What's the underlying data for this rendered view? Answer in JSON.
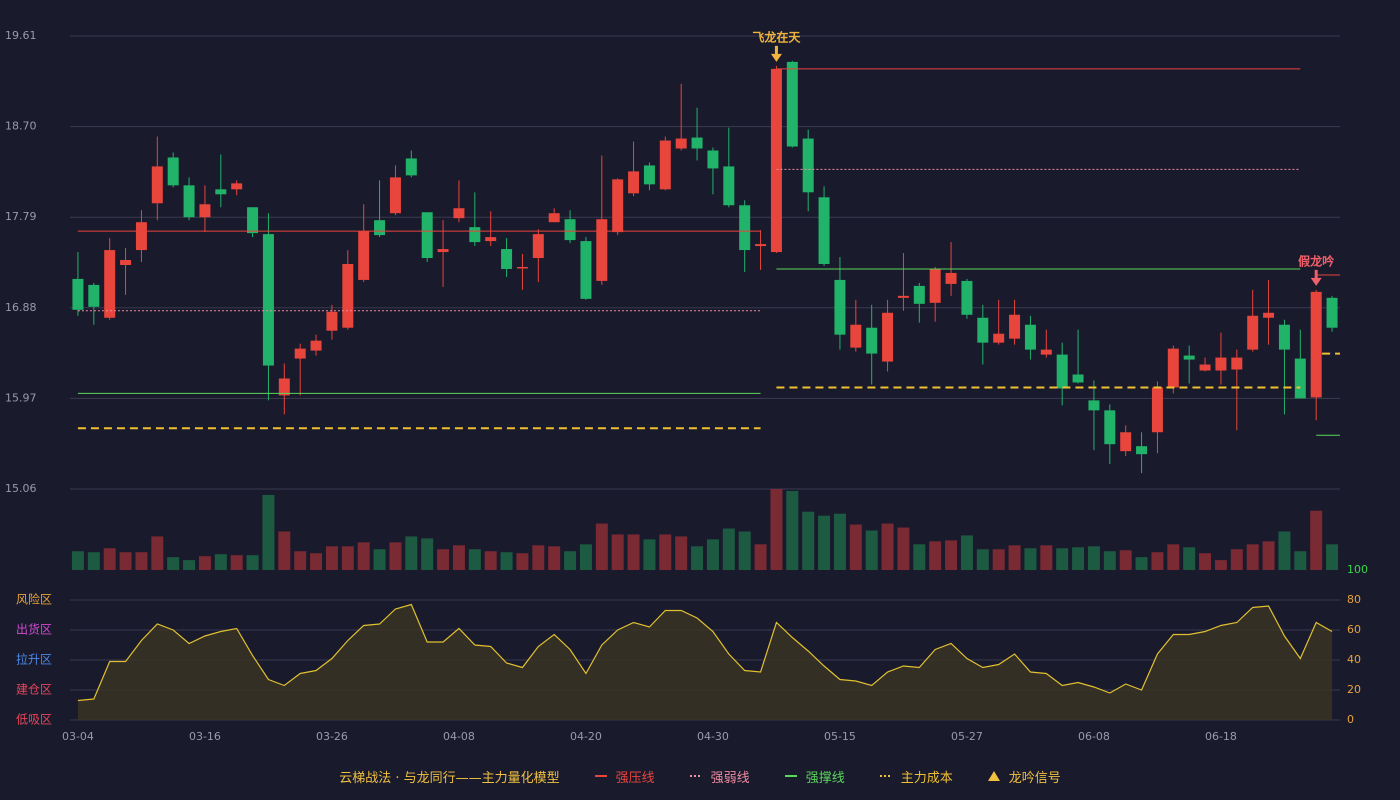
{
  "chart_data": {
    "type": "candlestick",
    "categories": [
      "03-04",
      null,
      null,
      null,
      null,
      null,
      null,
      null,
      "03-16",
      null,
      null,
      null,
      null,
      null,
      null,
      null,
      "03-26",
      null,
      null,
      null,
      null,
      null,
      null,
      null,
      "04-08",
      null,
      null,
      null,
      null,
      null,
      null,
      null,
      "04-20",
      null,
      null,
      null,
      null,
      null,
      null,
      null,
      "04-30",
      null,
      null,
      null,
      null,
      null,
      null,
      null,
      "05-15",
      null,
      null,
      null,
      null,
      null,
      null,
      null,
      "05-27",
      null,
      null,
      null,
      null,
      null,
      null,
      null,
      "06-08",
      null,
      null,
      null,
      null,
      null,
      null,
      null,
      "06-18",
      null,
      null,
      null,
      null,
      null,
      null,
      null
    ],
    "open": [
      17.17,
      17.11,
      16.78,
      17.31,
      17.46,
      17.93,
      18.39,
      18.11,
      17.79,
      18.07,
      18.07,
      17.89,
      17.62,
      16.0,
      16.37,
      16.45,
      16.65,
      16.68,
      17.16,
      17.76,
      17.83,
      18.38,
      17.84,
      17.44,
      17.78,
      17.69,
      17.55,
      17.47,
      17.28,
      17.38,
      17.74,
      17.77,
      17.55,
      17.15,
      17.64,
      18.03,
      18.31,
      18.07,
      18.48,
      18.59,
      18.46,
      18.3,
      17.91,
      17.5,
      17.44,
      19.35,
      18.58,
      17.99,
      17.16,
      16.48,
      16.68,
      16.34,
      16.98,
      17.1,
      16.93,
      17.12,
      17.15,
      16.78,
      16.53,
      16.57,
      16.71,
      16.41,
      16.41,
      16.21,
      15.95,
      15.85,
      15.44,
      15.49,
      15.63,
      16.08,
      16.4,
      16.25,
      16.25,
      16.26,
      16.46,
      16.78,
      16.71,
      16.37,
      15.98,
      16.98
    ],
    "close": [
      16.86,
      16.89,
      17.46,
      17.36,
      17.74,
      18.3,
      18.11,
      17.79,
      17.92,
      18.02,
      18.13,
      17.63,
      16.3,
      16.17,
      16.47,
      16.55,
      16.84,
      17.32,
      17.65,
      17.61,
      18.19,
      18.21,
      17.38,
      17.47,
      17.88,
      17.54,
      17.59,
      17.27,
      17.29,
      17.62,
      17.83,
      17.56,
      16.97,
      17.77,
      18.17,
      18.25,
      18.12,
      18.56,
      18.58,
      18.48,
      18.28,
      17.91,
      17.46,
      17.52,
      19.28,
      18.5,
      18.04,
      17.32,
      16.61,
      16.71,
      16.42,
      16.83,
      17.0,
      16.92,
      17.27,
      17.23,
      16.81,
      16.53,
      16.62,
      16.81,
      16.46,
      16.46,
      16.07,
      16.13,
      15.85,
      15.51,
      15.63,
      15.41,
      16.08,
      16.47,
      16.36,
      16.31,
      16.38,
      16.38,
      16.8,
      16.83,
      16.46,
      15.97,
      17.04,
      16.68
    ],
    "high": [
      17.44,
      17.13,
      17.58,
      17.48,
      17.86,
      18.6,
      18.44,
      18.19,
      18.11,
      18.42,
      18.16,
      17.89,
      17.83,
      16.32,
      16.52,
      16.61,
      16.91,
      17.46,
      17.92,
      18.16,
      18.31,
      18.46,
      17.84,
      17.76,
      18.16,
      18.04,
      17.85,
      17.58,
      17.42,
      17.67,
      17.88,
      17.86,
      17.59,
      18.41,
      18.18,
      18.55,
      18.34,
      18.6,
      19.13,
      18.89,
      18.49,
      18.69,
      17.96,
      17.66,
      19.31,
      19.36,
      18.67,
      18.1,
      17.39,
      16.96,
      16.91,
      16.96,
      17.43,
      17.13,
      17.29,
      17.54,
      17.17,
      16.91,
      16.96,
      16.96,
      16.8,
      16.66,
      16.53,
      16.66,
      16.15,
      15.91,
      15.7,
      15.63,
      16.14,
      16.5,
      16.5,
      16.38,
      16.63,
      16.46,
      17.06,
      17.16,
      16.76,
      16.66,
      17.06,
      17.0
    ],
    "low": [
      16.8,
      16.71,
      16.76,
      17.01,
      17.34,
      17.76,
      18.09,
      17.76,
      17.64,
      17.89,
      18.01,
      17.59,
      15.95,
      15.81,
      16.0,
      16.4,
      16.56,
      16.66,
      17.14,
      17.59,
      17.81,
      18.19,
      17.34,
      17.09,
      17.74,
      17.5,
      17.5,
      17.19,
      17.06,
      17.14,
      17.74,
      17.53,
      16.96,
      17.11,
      17.61,
      18.0,
      18.06,
      18.06,
      18.46,
      18.36,
      18.02,
      17.89,
      17.24,
      17.26,
      17.43,
      18.49,
      17.85,
      17.3,
      16.46,
      16.44,
      16.11,
      16.24,
      16.85,
      16.73,
      16.74,
      17.0,
      16.77,
      16.31,
      16.51,
      16.51,
      16.36,
      16.38,
      15.9,
      16.12,
      15.45,
      15.31,
      15.39,
      15.22,
      15.42,
      16.02,
      16.12,
      16.24,
      16.11,
      15.65,
      16.44,
      16.51,
      15.81,
      15.97,
      15.75,
      16.64
    ],
    "up_color": "#e8453c",
    "down_color": "#21b36a",
    "ylim": [
      15.06,
      19.61
    ],
    "yticks": [
      19.61,
      {
        "value": 18.7,
        "label": "18.70"
      },
      17.79,
      16.88,
      15.97,
      15.06
    ],
    "grid": true,
    "volume": [
      19,
      18,
      22,
      18,
      18,
      34,
      13,
      10,
      14,
      16,
      15,
      15,
      76,
      39,
      19,
      17,
      24,
      24,
      28,
      21,
      28,
      34,
      32,
      21,
      25,
      21,
      19,
      18,
      17,
      25,
      24,
      19,
      26,
      47,
      36,
      36,
      31,
      36,
      34,
      24,
      31,
      42,
      39,
      26,
      82,
      80,
      59,
      55,
      57,
      46,
      40,
      47,
      43,
      26,
      29,
      30,
      35,
      21,
      21,
      25,
      22,
      25,
      22,
      23,
      24,
      19,
      20,
      13,
      18,
      26,
      23,
      17,
      10,
      21,
      26,
      29,
      39,
      19,
      60,
      26
    ],
    "volume_ylim": [
      0,
      82
    ],
    "volume_up_color": "#7a2a32",
    "volume_down_color": "#1d5a42",
    "levels": [
      {
        "name": "强压线",
        "color": "#e8453c",
        "style": "solid",
        "values": [
          17.65,
          17.65,
          17.65,
          17.65,
          17.65,
          17.65,
          17.65,
          17.65,
          17.65,
          17.65,
          17.65,
          17.65,
          17.65,
          17.65,
          17.65,
          17.65,
          17.65,
          17.65,
          17.65,
          17.65,
          17.65,
          17.65,
          17.65,
          17.65,
          17.65,
          17.65,
          17.65,
          17.65,
          17.65,
          17.65,
          17.65,
          17.65,
          17.65,
          17.65,
          17.65,
          17.65,
          17.65,
          17.65,
          17.65,
          17.65,
          17.65,
          17.65,
          17.65,
          17.65,
          19.28,
          19.28,
          19.28,
          19.28,
          19.28,
          19.28,
          19.28,
          19.28,
          19.28,
          19.28,
          19.28,
          19.28,
          19.28,
          19.28,
          19.28,
          19.28,
          19.28,
          19.28,
          19.28,
          19.28,
          19.28,
          19.28,
          19.28,
          19.28,
          19.28,
          19.28,
          19.28,
          19.28,
          19.28,
          19.28,
          19.28,
          19.28,
          19.28,
          19.28,
          17.21,
          17.21
        ]
      },
      {
        "name": "强弱线",
        "color": "#f08ca0",
        "style": "dotted",
        "values": [
          16.85,
          16.85,
          16.85,
          16.85,
          16.85,
          16.85,
          16.85,
          16.85,
          16.85,
          16.85,
          16.85,
          16.85,
          16.85,
          16.85,
          16.85,
          16.85,
          16.85,
          16.85,
          16.85,
          16.85,
          16.85,
          16.85,
          16.85,
          16.85,
          16.85,
          16.85,
          16.85,
          16.85,
          16.85,
          16.85,
          16.85,
          16.85,
          16.85,
          16.85,
          16.85,
          16.85,
          16.85,
          16.85,
          16.85,
          16.85,
          16.85,
          16.85,
          16.85,
          16.85,
          18.27,
          18.27,
          18.27,
          18.27,
          18.27,
          18.27,
          18.27,
          18.27,
          18.27,
          18.27,
          18.27,
          18.27,
          18.27,
          18.27,
          18.27,
          18.27,
          18.27,
          18.27,
          18.27,
          18.27,
          18.27,
          18.27,
          18.27,
          18.27,
          18.27,
          18.27,
          18.27,
          18.27,
          18.27,
          18.27,
          18.27,
          18.27,
          18.27,
          18.27,
          null,
          null
        ]
      },
      {
        "name": "强撑线",
        "color": "#5ad65a",
        "style": "solid",
        "values": [
          16.02,
          16.02,
          16.02,
          16.02,
          16.02,
          16.02,
          16.02,
          16.02,
          16.02,
          16.02,
          16.02,
          16.02,
          16.02,
          16.02,
          16.02,
          16.02,
          16.02,
          16.02,
          16.02,
          16.02,
          16.02,
          16.02,
          16.02,
          16.02,
          16.02,
          16.02,
          16.02,
          16.02,
          16.02,
          16.02,
          16.02,
          16.02,
          16.02,
          16.02,
          16.02,
          16.02,
          16.02,
          16.02,
          16.02,
          16.02,
          16.02,
          16.02,
          16.02,
          16.02,
          17.27,
          17.27,
          17.27,
          17.27,
          17.27,
          17.27,
          17.27,
          17.27,
          17.27,
          17.27,
          17.27,
          17.27,
          17.27,
          17.27,
          17.27,
          17.27,
          17.27,
          17.27,
          17.27,
          17.27,
          17.27,
          17.27,
          17.27,
          17.27,
          17.27,
          17.27,
          17.27,
          17.27,
          17.27,
          17.27,
          17.27,
          17.27,
          17.27,
          17.27,
          15.6,
          15.6
        ]
      },
      {
        "name": "主力成本",
        "color": "#f0c030",
        "style": "dashed",
        "values": [
          15.67,
          15.67,
          15.67,
          15.67,
          15.67,
          15.67,
          15.67,
          15.67,
          15.67,
          15.67,
          15.67,
          15.67,
          15.67,
          15.67,
          15.67,
          15.67,
          15.67,
          15.67,
          15.67,
          15.67,
          15.67,
          15.67,
          15.67,
          15.67,
          15.67,
          15.67,
          15.67,
          15.67,
          15.67,
          15.67,
          15.67,
          15.67,
          15.67,
          15.67,
          15.67,
          15.67,
          15.67,
          15.67,
          15.67,
          15.67,
          15.67,
          15.67,
          15.67,
          15.67,
          16.08,
          16.08,
          16.08,
          16.08,
          16.08,
          16.08,
          16.08,
          16.08,
          16.08,
          16.08,
          16.08,
          16.08,
          16.08,
          16.08,
          16.08,
          16.08,
          16.08,
          16.08,
          16.08,
          16.08,
          16.08,
          16.08,
          16.08,
          16.08,
          16.08,
          16.08,
          16.08,
          16.08,
          16.08,
          16.08,
          16.08,
          16.08,
          16.08,
          16.08,
          null,
          16.42
        ]
      }
    ],
    "signals": [
      {
        "index": 44,
        "label": "飞龙在天",
        "color": "#f0b43c"
      },
      {
        "index": 78,
        "label": "假龙吟",
        "color": "#f0606a"
      }
    ],
    "signal_legend": {
      "name": "龙吟信号",
      "color": "#f0c040"
    },
    "legend_title": "云梯战法 · 与龙同行——主力量化模型",
    "indicator": {
      "values": [
        13,
        14,
        39,
        39,
        53,
        64,
        60,
        51,
        56,
        59,
        61,
        43,
        27,
        23,
        31,
        33,
        41,
        53,
        63,
        64,
        74,
        77,
        52,
        52,
        61,
        50,
        49,
        38,
        35,
        49,
        57,
        47,
        31,
        50,
        60,
        65,
        62,
        73,
        73,
        68,
        59,
        44,
        33,
        32,
        65,
        55,
        46,
        36,
        27,
        26,
        23,
        32,
        36,
        35,
        47,
        51,
        41,
        35,
        37,
        44,
        32,
        31,
        23,
        25,
        22,
        18,
        24,
        20,
        44,
        57,
        57,
        59,
        63,
        65,
        75,
        76,
        56,
        41,
        65,
        59
      ],
      "color": "#e0c030",
      "ylim": [
        0,
        100
      ],
      "yticks": [
        0,
        20,
        40,
        60,
        80,
        100
      ],
      "ytick_colors": [
        "#e8a33a",
        "#e8a33a",
        "#e8a33a",
        "#e8a33a",
        "#e8a33a",
        "#3ad64a"
      ],
      "zones": [
        {
          "label": "风险区",
          "value": 80,
          "color": "#e8a33a"
        },
        {
          "label": "出货区",
          "value": 60,
          "color": "#d24ad2"
        },
        {
          "label": "拉升区",
          "value": 40,
          "color": "#4a8ae8"
        },
        {
          "label": "建仓区",
          "value": 20,
          "color": "#e8455a"
        },
        {
          "label": "低吸区",
          "value": 0,
          "color": "#e8455a"
        }
      ]
    }
  }
}
